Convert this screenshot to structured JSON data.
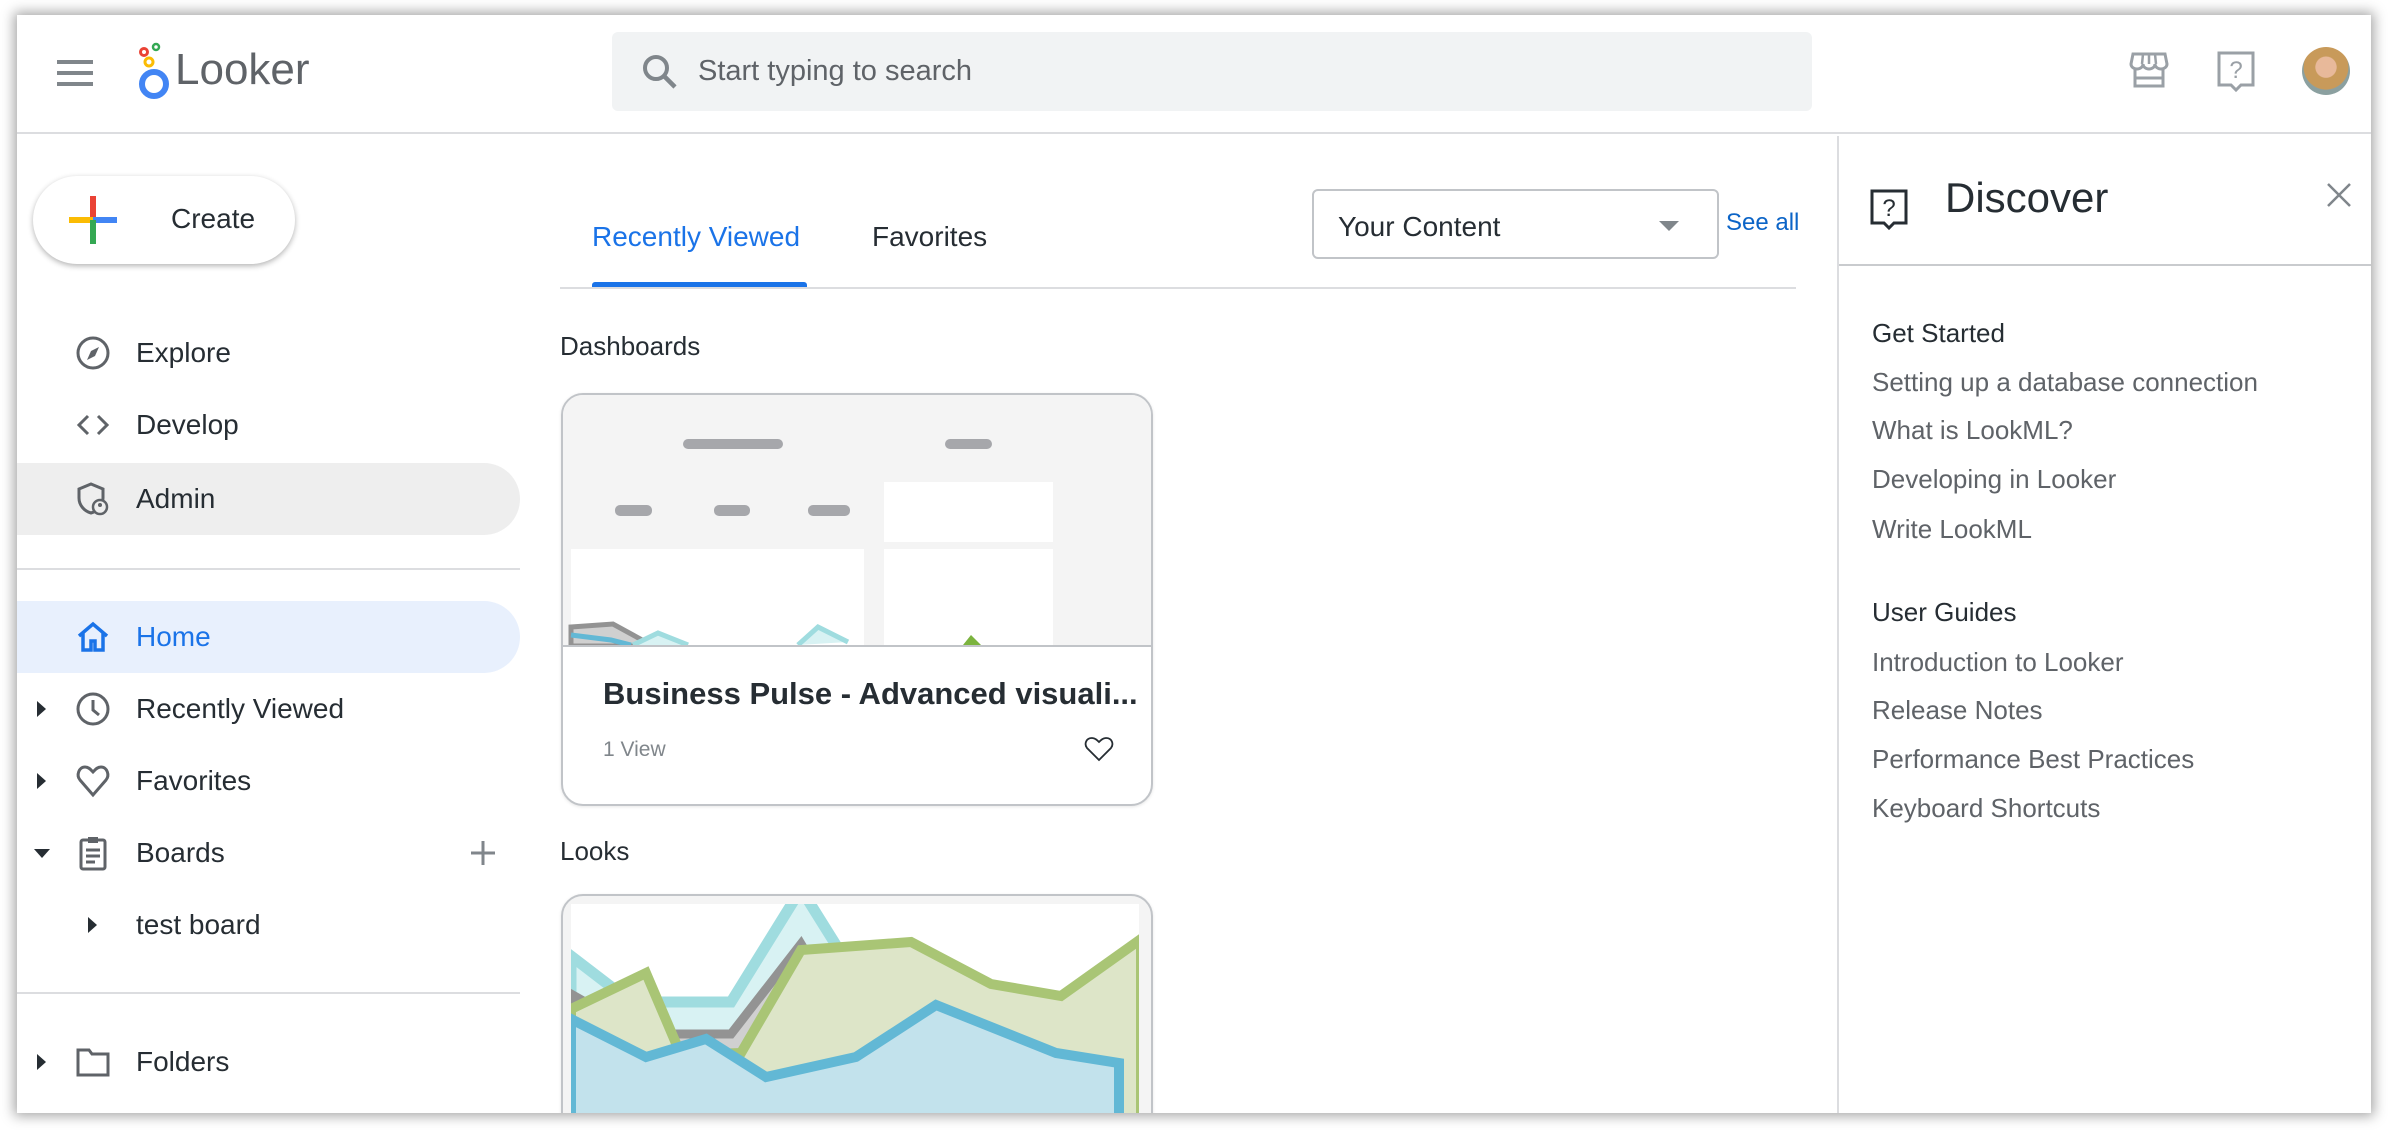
{
  "header": {
    "app_name": "Looker",
    "search_placeholder": "Start typing to search",
    "icons": [
      "menu-icon",
      "search-icon",
      "marketplace-icon",
      "help-icon",
      "avatar"
    ]
  },
  "sidebar": {
    "create_label": "Create",
    "items": [
      {
        "label": "Explore",
        "icon": "compass-icon"
      },
      {
        "label": "Develop",
        "icon": "code-icon"
      },
      {
        "label": "Admin",
        "icon": "admin-shield-icon"
      },
      {
        "label": "Home",
        "icon": "home-icon",
        "active": true
      },
      {
        "label": "Recently Viewed",
        "icon": "clock-icon"
      },
      {
        "label": "Favorites",
        "icon": "heart-icon"
      },
      {
        "label": "Boards",
        "icon": "board-icon"
      },
      {
        "label": "test board"
      },
      {
        "label": "Folders",
        "icon": "folder-icon"
      }
    ]
  },
  "main": {
    "tabs": [
      {
        "label": "Recently Viewed",
        "active": true
      },
      {
        "label": "Favorites"
      }
    ],
    "content_filter": "Your Content",
    "see_all": "See all",
    "dashboards_heading": "Dashboards",
    "dashboard_card": {
      "title": "Business Pulse - Advanced visuali...",
      "views": "1 View"
    },
    "looks_heading": "Looks"
  },
  "discover": {
    "title": "Discover",
    "sections": [
      {
        "heading": "Get Started",
        "links": [
          "Setting up a database connection",
          "What is LookML?",
          "Developing in Looker",
          "Write LookML"
        ]
      },
      {
        "heading": "User Guides",
        "links": [
          "Introduction to Looker",
          "Release Notes",
          "Performance Best Practices",
          "Keyboard Shortcuts"
        ]
      }
    ]
  },
  "colors": {
    "accent": "#1a73e8",
    "active_nav_bg": "#e8f0fd",
    "hover_nav_bg": "#eeeeee",
    "link": "#0b64c7"
  }
}
